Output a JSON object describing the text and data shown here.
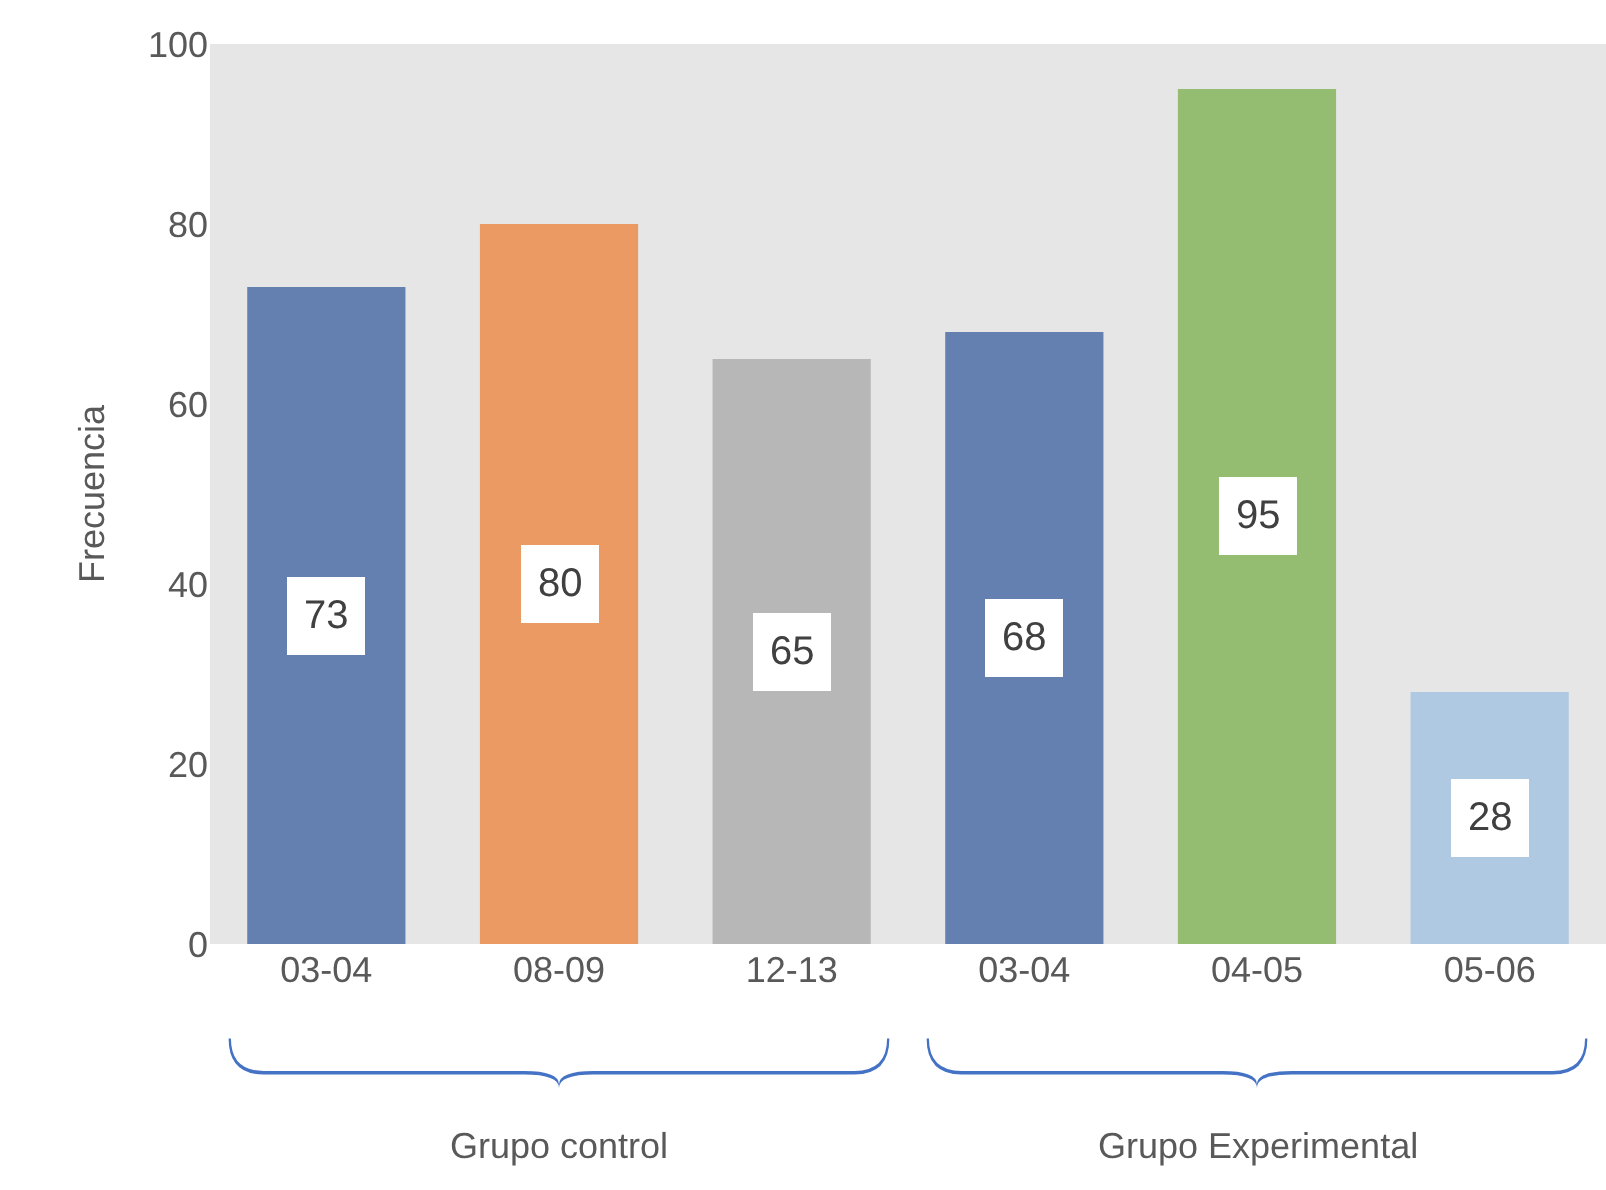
{
  "chart_data": {
    "type": "bar",
    "ylabel": "Frecuencia",
    "categories": [
      "03-04",
      "08-09",
      "12-13",
      "03-04",
      "04-05",
      "05-06"
    ],
    "values": [
      73,
      80,
      65,
      68,
      95,
      28
    ],
    "colors": [
      "#6480b0",
      "#ec9a64",
      "#b7b7b7",
      "#6480b0",
      "#94bd72",
      "#afc9e3"
    ],
    "ylim": [
      0,
      100
    ],
    "yticks": [
      0,
      20,
      40,
      60,
      80,
      100
    ],
    "grid": false,
    "legend": false,
    "data_labels": true,
    "annotations": [
      "Grupo control",
      "Grupo Experimental"
    ]
  }
}
